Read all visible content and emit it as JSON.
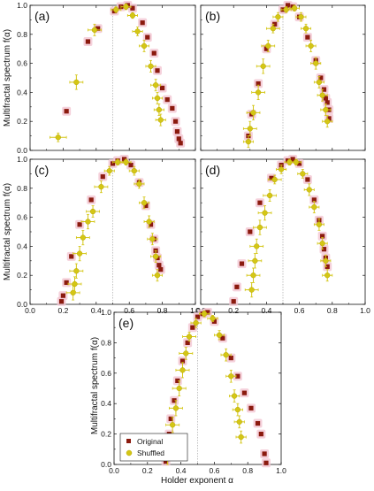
{
  "figure": {
    "ylabel_left": "Multifractal spectrum f(α)",
    "ylabel_bottom": "Multifractal spectrum f(α)",
    "xlabel": "Holder exponent α"
  },
  "legend": {
    "original": "Original",
    "shuffled": "Shuffled"
  },
  "colors": {
    "original": "#8b1a0e",
    "shuffled": "#d4c615",
    "shuffled_edge": "#b8a800",
    "original_halo": "#f3c6d2",
    "reference_line": "#999999"
  },
  "chart_data": [
    {
      "type": "scatter",
      "panel": "(a)",
      "xlim": [
        0.0,
        1.0
      ],
      "ylim": [
        0.0,
        1.0
      ],
      "x_ticks": [
        "0.0",
        "0.2",
        "0.4",
        "0.6",
        "0.8",
        "1.0"
      ],
      "y_ticks": [
        "0.0",
        "0.2",
        "0.4",
        "0.6",
        "0.8",
        "1.0"
      ],
      "reference_x": 0.5,
      "series": [
        {
          "name": "Original",
          "points": [
            [
              0.22,
              0.27
            ],
            [
              0.35,
              0.75
            ],
            [
              0.41,
              0.84
            ],
            [
              0.51,
              0.96
            ],
            [
              0.55,
              0.99
            ],
            [
              0.59,
              1.0
            ],
            [
              0.62,
              0.98
            ],
            [
              0.68,
              0.88
            ],
            [
              0.71,
              0.78
            ],
            [
              0.75,
              0.67
            ],
            [
              0.77,
              0.55
            ],
            [
              0.8,
              0.43
            ],
            [
              0.83,
              0.35
            ],
            [
              0.86,
              0.29
            ],
            [
              0.88,
              0.2
            ],
            [
              0.89,
              0.13
            ],
            [
              0.9,
              0.08
            ],
            [
              0.91,
              0.05
            ]
          ]
        },
        {
          "name": "Shuffled",
          "points": [
            [
              0.17,
              0.09,
              0.05,
              0.03
            ],
            [
              0.28,
              0.47,
              0.04,
              0.05
            ],
            [
              0.39,
              0.83,
              0.04,
              0.04
            ],
            [
              0.52,
              0.97,
              0.03,
              0.02
            ],
            [
              0.58,
              0.99,
              0.03,
              0.02
            ],
            [
              0.62,
              0.93,
              0.03,
              0.02
            ],
            [
              0.65,
              0.82,
              0.03,
              0.03
            ],
            [
              0.69,
              0.72,
              0.03,
              0.04
            ],
            [
              0.73,
              0.58,
              0.03,
              0.04
            ],
            [
              0.76,
              0.45,
              0.03,
              0.04
            ],
            [
              0.77,
              0.36,
              0.03,
              0.04
            ],
            [
              0.78,
              0.28,
              0.03,
              0.04
            ],
            [
              0.79,
              0.21,
              0.03,
              0.04
            ]
          ]
        }
      ]
    },
    {
      "type": "scatter",
      "panel": "(b)",
      "xlim": [
        0.0,
        1.0
      ],
      "ylim": [
        0.0,
        1.0
      ],
      "x_ticks": [
        "0.0",
        "0.2",
        "0.4",
        "0.6",
        "0.8",
        "1.0"
      ],
      "y_ticks": [
        "0.0",
        "0.2",
        "0.4",
        "0.6",
        "0.8",
        "1.0"
      ],
      "reference_x": 0.5,
      "series": [
        {
          "name": "Original",
          "points": [
            [
              0.29,
              0.1
            ],
            [
              0.31,
              0.25
            ],
            [
              0.35,
              0.46
            ],
            [
              0.4,
              0.7
            ],
            [
              0.45,
              0.87
            ],
            [
              0.5,
              0.97
            ],
            [
              0.53,
              1.0
            ],
            [
              0.56,
              0.99
            ],
            [
              0.6,
              0.92
            ],
            [
              0.65,
              0.78
            ],
            [
              0.7,
              0.62
            ],
            [
              0.73,
              0.5
            ],
            [
              0.75,
              0.42
            ],
            [
              0.76,
              0.36
            ],
            [
              0.77,
              0.33
            ],
            [
              0.78,
              0.28
            ],
            [
              0.78,
              0.22
            ]
          ]
        },
        {
          "name": "Shuffled",
          "points": [
            [
              0.29,
              0.06,
              0.03,
              0.04
            ],
            [
              0.3,
              0.15,
              0.04,
              0.05
            ],
            [
              0.32,
              0.26,
              0.04,
              0.05
            ],
            [
              0.35,
              0.4,
              0.04,
              0.05
            ],
            [
              0.38,
              0.58,
              0.04,
              0.05
            ],
            [
              0.41,
              0.72,
              0.04,
              0.04
            ],
            [
              0.44,
              0.84,
              0.04,
              0.03
            ],
            [
              0.47,
              0.92,
              0.03,
              0.03
            ],
            [
              0.52,
              0.97,
              0.03,
              0.02
            ],
            [
              0.57,
              0.98,
              0.03,
              0.02
            ],
            [
              0.61,
              0.92,
              0.03,
              0.03
            ],
            [
              0.64,
              0.84,
              0.03,
              0.03
            ],
            [
              0.67,
              0.72,
              0.03,
              0.04
            ],
            [
              0.7,
              0.6,
              0.03,
              0.04
            ],
            [
              0.72,
              0.47,
              0.03,
              0.04
            ],
            [
              0.74,
              0.38,
              0.03,
              0.04
            ],
            [
              0.76,
              0.28,
              0.03,
              0.04
            ],
            [
              0.77,
              0.2,
              0.03,
              0.04
            ]
          ]
        }
      ]
    },
    {
      "type": "scatter",
      "panel": "(c)",
      "xlim": [
        0.0,
        1.0
      ],
      "ylim": [
        0.0,
        1.0
      ],
      "x_ticks": [
        "0.0",
        "0.2",
        "0.4",
        "0.6",
        "0.8",
        "1.0"
      ],
      "y_ticks": [
        "0.0",
        "0.2",
        "0.4",
        "0.6",
        "0.8",
        "1.0"
      ],
      "reference_x": 0.5,
      "series": [
        {
          "name": "Original",
          "points": [
            [
              0.19,
              0.02
            ],
            [
              0.2,
              0.06
            ],
            [
              0.22,
              0.15
            ],
            [
              0.25,
              0.33
            ],
            [
              0.3,
              0.55
            ],
            [
              0.37,
              0.72
            ],
            [
              0.44,
              0.88
            ],
            [
              0.5,
              0.97
            ],
            [
              0.53,
              0.99
            ],
            [
              0.57,
              1.0
            ],
            [
              0.61,
              0.96
            ],
            [
              0.66,
              0.84
            ],
            [
              0.7,
              0.68
            ],
            [
              0.73,
              0.55
            ],
            [
              0.75,
              0.45
            ],
            [
              0.76,
              0.37
            ],
            [
              0.77,
              0.32
            ],
            [
              0.78,
              0.27
            ],
            [
              0.79,
              0.24
            ]
          ]
        },
        {
          "name": "Shuffled",
          "points": [
            [
              0.26,
              0.08,
              0.04,
              0.05
            ],
            [
              0.27,
              0.14,
              0.04,
              0.05
            ],
            [
              0.28,
              0.23,
              0.04,
              0.05
            ],
            [
              0.3,
              0.35,
              0.04,
              0.05
            ],
            [
              0.32,
              0.46,
              0.04,
              0.05
            ],
            [
              0.35,
              0.57,
              0.04,
              0.05
            ],
            [
              0.38,
              0.64,
              0.04,
              0.04
            ],
            [
              0.43,
              0.81,
              0.04,
              0.04
            ],
            [
              0.48,
              0.92,
              0.03,
              0.03
            ],
            [
              0.53,
              0.98,
              0.03,
              0.02
            ],
            [
              0.58,
              0.98,
              0.03,
              0.02
            ],
            [
              0.63,
              0.92,
              0.03,
              0.03
            ],
            [
              0.66,
              0.83,
              0.03,
              0.03
            ],
            [
              0.69,
              0.7,
              0.03,
              0.04
            ],
            [
              0.72,
              0.57,
              0.03,
              0.04
            ],
            [
              0.74,
              0.45,
              0.03,
              0.04
            ],
            [
              0.76,
              0.33,
              0.03,
              0.04
            ],
            [
              0.77,
              0.2,
              0.03,
              0.04
            ]
          ]
        }
      ]
    },
    {
      "type": "scatter",
      "panel": "(d)",
      "xlim": [
        0.0,
        1.0
      ],
      "ylim": [
        0.0,
        1.0
      ],
      "x_ticks": [
        "0.0",
        "0.2",
        "0.4",
        "0.6",
        "0.8",
        "1.0"
      ],
      "y_ticks": [
        "0.0",
        "0.2",
        "0.4",
        "0.6",
        "0.8",
        "1.0"
      ],
      "reference_x": 0.5,
      "series": [
        {
          "name": "Original",
          "points": [
            [
              0.2,
              0.02
            ],
            [
              0.22,
              0.12
            ],
            [
              0.25,
              0.28
            ],
            [
              0.3,
              0.5
            ],
            [
              0.36,
              0.7
            ],
            [
              0.43,
              0.87
            ],
            [
              0.49,
              0.96
            ],
            [
              0.53,
              0.99
            ],
            [
              0.56,
              1.0
            ],
            [
              0.6,
              0.97
            ],
            [
              0.65,
              0.86
            ],
            [
              0.69,
              0.72
            ],
            [
              0.72,
              0.58
            ],
            [
              0.74,
              0.47
            ],
            [
              0.75,
              0.38
            ],
            [
              0.76,
              0.32
            ],
            [
              0.77,
              0.26
            ]
          ]
        },
        {
          "name": "Shuffled",
          "points": [
            [
              0.31,
              0.1,
              0.04,
              0.05
            ],
            [
              0.32,
              0.2,
              0.04,
              0.05
            ],
            [
              0.33,
              0.3,
              0.04,
              0.05
            ],
            [
              0.34,
              0.4,
              0.04,
              0.05
            ],
            [
              0.36,
              0.53,
              0.04,
              0.05
            ],
            [
              0.39,
              0.63,
              0.04,
              0.05
            ],
            [
              0.42,
              0.75,
              0.04,
              0.04
            ],
            [
              0.45,
              0.86,
              0.04,
              0.03
            ],
            [
              0.49,
              0.93,
              0.03,
              0.03
            ],
            [
              0.54,
              0.98,
              0.03,
              0.02
            ],
            [
              0.58,
              0.98,
              0.03,
              0.02
            ],
            [
              0.62,
              0.9,
              0.03,
              0.03
            ],
            [
              0.66,
              0.79,
              0.03,
              0.04
            ],
            [
              0.69,
              0.67,
              0.03,
              0.04
            ],
            [
              0.72,
              0.55,
              0.03,
              0.04
            ],
            [
              0.74,
              0.42,
              0.03,
              0.04
            ],
            [
              0.76,
              0.3,
              0.03,
              0.04
            ],
            [
              0.77,
              0.2,
              0.03,
              0.04
            ]
          ]
        }
      ]
    },
    {
      "type": "scatter",
      "panel": "(e)",
      "xlim": [
        0.0,
        1.0
      ],
      "ylim": [
        0.0,
        1.0
      ],
      "x_ticks": [
        "0.0",
        "0.2",
        "0.4",
        "0.6",
        "0.8",
        "1.0"
      ],
      "y_ticks": [
        "0.0",
        "0.2",
        "0.4",
        "0.6",
        "0.8",
        "1.0"
      ],
      "reference_x": 0.5,
      "series": [
        {
          "name": "Original",
          "points": [
            [
              0.31,
              0.02
            ],
            [
              0.32,
              0.1
            ],
            [
              0.33,
              0.2
            ],
            [
              0.34,
              0.3
            ],
            [
              0.36,
              0.42
            ],
            [
              0.38,
              0.55
            ],
            [
              0.41,
              0.68
            ],
            [
              0.44,
              0.8
            ],
            [
              0.47,
              0.9
            ],
            [
              0.5,
              0.97
            ],
            [
              0.53,
              0.99
            ],
            [
              0.56,
              1.0
            ],
            [
              0.6,
              0.94
            ],
            [
              0.65,
              0.83
            ],
            [
              0.7,
              0.7
            ],
            [
              0.74,
              0.58
            ],
            [
              0.78,
              0.47
            ],
            [
              0.82,
              0.37
            ],
            [
              0.86,
              0.27
            ],
            [
              0.88,
              0.2
            ],
            [
              0.9,
              0.07
            ],
            [
              0.91,
              0.01
            ]
          ]
        },
        {
          "name": "Shuffled",
          "points": [
            [
              0.32,
              0.05,
              0.04,
              0.05
            ],
            [
              0.33,
              0.15,
              0.04,
              0.05
            ],
            [
              0.35,
              0.26,
              0.04,
              0.05
            ],
            [
              0.37,
              0.37,
              0.04,
              0.05
            ],
            [
              0.39,
              0.5,
              0.04,
              0.05
            ],
            [
              0.41,
              0.62,
              0.04,
              0.05
            ],
            [
              0.43,
              0.73,
              0.04,
              0.04
            ],
            [
              0.45,
              0.84,
              0.04,
              0.03
            ],
            [
              0.49,
              0.93,
              0.03,
              0.03
            ],
            [
              0.54,
              0.99,
              0.03,
              0.02
            ],
            [
              0.59,
              0.96,
              0.03,
              0.02
            ],
            [
              0.63,
              0.85,
              0.03,
              0.03
            ],
            [
              0.67,
              0.72,
              0.03,
              0.04
            ],
            [
              0.7,
              0.58,
              0.03,
              0.04
            ],
            [
              0.72,
              0.45,
              0.03,
              0.04
            ],
            [
              0.74,
              0.36,
              0.03,
              0.04
            ],
            [
              0.75,
              0.28,
              0.03,
              0.04
            ],
            [
              0.76,
              0.18,
              0.03,
              0.04
            ]
          ]
        }
      ]
    }
  ]
}
